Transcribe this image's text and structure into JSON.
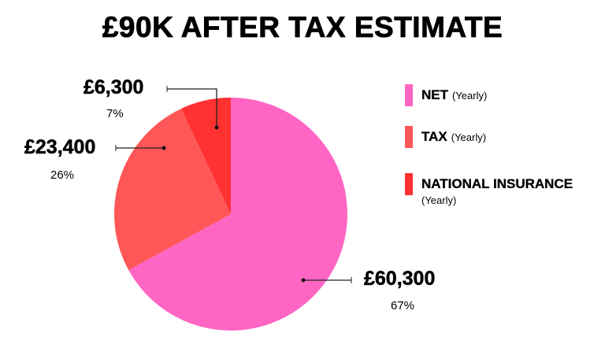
{
  "chart_data": {
    "type": "pie",
    "title": "£90K AFTER TAX ESTIMATE",
    "slices": [
      {
        "name": "NET",
        "sub": "(Yearly)",
        "amount": "£60,300",
        "value": 60300,
        "percent": "67%",
        "color": "#ff66c4"
      },
      {
        "name": "TAX",
        "sub": "(Yearly)",
        "amount": "£23,400",
        "value": 23400,
        "percent": "26%",
        "color": "#ff5757"
      },
      {
        "name": "NATIONAL INSURANCE",
        "sub": "(Yearly)",
        "amount": "£6,300",
        "value": 6300,
        "percent": "7%",
        "color": "#ff3131"
      }
    ],
    "start": "top",
    "direction": "clockwise",
    "legend_position": "right"
  }
}
